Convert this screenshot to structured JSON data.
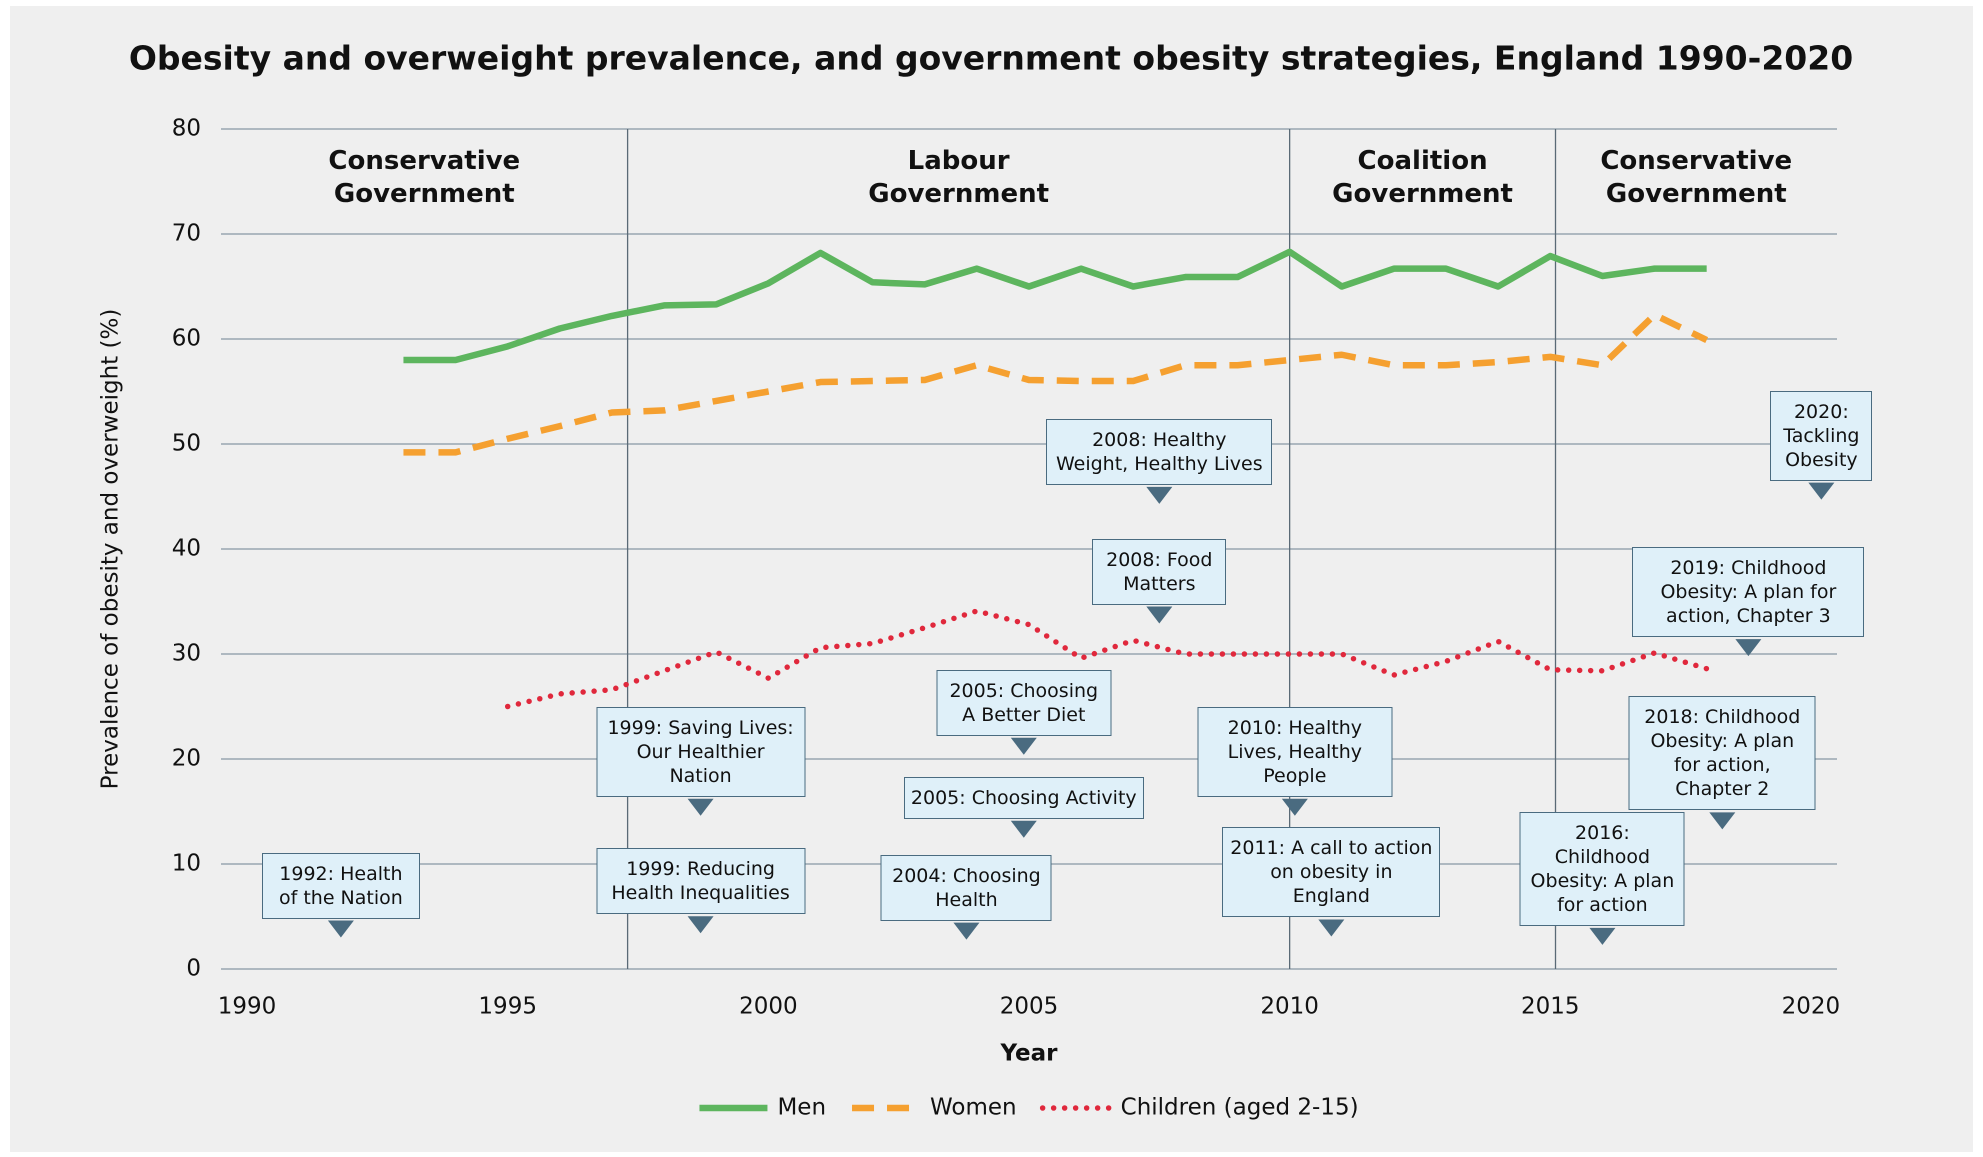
{
  "chart_data": {
    "type": "line",
    "title": "Obesity and overweight prevalence, and government obesity strategies, England 1990-2020",
    "x_label": "Year",
    "y_label": "Prevalence of obesity and overweight (%)",
    "x": [
      1993,
      1994,
      1995,
      1996,
      1997,
      1998,
      1999,
      2000,
      2001,
      2002,
      2003,
      2004,
      2005,
      2006,
      2007,
      2008,
      2009,
      2010,
      2011,
      2012,
      2013,
      2014,
      2015,
      2016,
      2017,
      2018
    ],
    "series": [
      {
        "name": "Men",
        "color": "#5db55e",
        "style": "solid",
        "values": [
          58,
          58,
          59.3,
          61,
          62.2,
          63.2,
          63.3,
          65.3,
          68.2,
          65.4,
          65.2,
          66.7,
          65,
          66.7,
          65,
          65.9,
          65.9,
          68.3,
          65,
          66.7,
          66.7,
          65,
          67.9,
          66,
          66.7,
          66.7
        ]
      },
      {
        "name": "Women",
        "color": "#f5a030",
        "style": "dashed",
        "values": [
          49.2,
          49.2,
          50.5,
          51.7,
          53,
          53.2,
          54.1,
          55,
          55.9,
          56,
          56.1,
          57.5,
          56.1,
          56,
          56,
          57.5,
          57.5,
          58,
          58.5,
          57.5,
          57.5,
          57.8,
          58.3,
          57.5,
          62.3,
          59.9
        ]
      },
      {
        "name": "Children (aged 2-15)",
        "color": "#e0283c",
        "style": "dotted",
        "values": [
          null,
          null,
          25,
          26.2,
          26.6,
          28.4,
          30.2,
          27.7,
          30.6,
          31,
          32.5,
          34.1,
          32.8,
          29.6,
          31.3,
          30,
          30,
          30,
          30,
          28,
          29.3,
          31.2,
          28.5,
          28.4,
          30.1,
          28.6
        ]
      }
    ],
    "xlim": [
      1989.5,
      2020.5
    ],
    "ylim": [
      0,
      80
    ],
    "xticks": [
      1990,
      1995,
      2000,
      2005,
      2010,
      2015,
      2020
    ],
    "yticks": [
      0,
      10,
      20,
      30,
      40,
      50,
      60,
      70,
      80
    ],
    "grid": true,
    "legend": "bottom",
    "periods": [
      {
        "label": "Conservative Government",
        "start": 1989.5,
        "end": 1997.3
      },
      {
        "label": "Labour Government",
        "start": 1997.3,
        "end": 2010
      },
      {
        "label": "Coalition Government",
        "start": 2010,
        "end": 2015.1
      },
      {
        "label": "Conservative Government",
        "start": 2015.1,
        "end": 2020.5
      }
    ],
    "annotations": [
      {
        "text": "1992: Health of the Nation",
        "x": 1991.8,
        "y": 3
      },
      {
        "text": "1999: Saving Lives: Our Healthier Nation",
        "x": 1998.7,
        "y": 14.6
      },
      {
        "text": "1999: Reducing Health Inequalities",
        "x": 1998.7,
        "y": 3.4
      },
      {
        "text": "2005: Choosing A Better Diet",
        "x": 2004.9,
        "y": 20.4
      },
      {
        "text": "2005: Choosing Activity",
        "x": 2004.9,
        "y": 12.5
      },
      {
        "text": "2004: Choosing Health",
        "x": 2003.8,
        "y": 2.8
      },
      {
        "text": "2008: Healthy Weight, Healthy Lives",
        "x": 2007.5,
        "y": 44.3
      },
      {
        "text": "2008: Food Matters",
        "x": 2007.5,
        "y": 32.9
      },
      {
        "text": "2010: Healthy Lives, Healthy People",
        "x": 2010.1,
        "y": 14.6
      },
      {
        "text": "2011: A call to action on obesity in England",
        "x": 2010.8,
        "y": 3.1
      },
      {
        "text": "2016: Childhood Obesity: A plan for action",
        "x": 2016,
        "y": 2.3
      },
      {
        "text": "2018: Childhood Obesity: A plan for action, Chapter 2",
        "x": 2018.3,
        "y": 13.3
      },
      {
        "text": "2019: Childhood Obesity: A plan for action, Chapter 3",
        "x": 2018.8,
        "y": 29.8
      },
      {
        "text": "2020: Tackling Obesity",
        "x": 2020.2,
        "y": 44.7
      }
    ]
  }
}
